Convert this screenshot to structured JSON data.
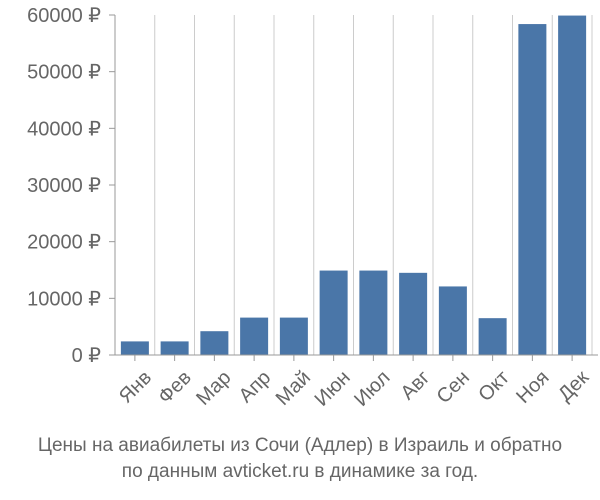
{
  "chart_data": {
    "type": "bar",
    "categories": [
      "Янв",
      "Фев",
      "Мар",
      "Апр",
      "Май",
      "Июн",
      "Июл",
      "Авг",
      "Сен",
      "Окт",
      "Ноя",
      "Дек"
    ],
    "values": [
      2400,
      2400,
      4200,
      6600,
      6600,
      14900,
      14900,
      14500,
      12100,
      6500,
      58400,
      59900
    ],
    "ylim": [
      0,
      60000
    ],
    "yticks": [
      0,
      10000,
      20000,
      30000,
      40000,
      50000,
      60000
    ],
    "ytick_labels": [
      "0 ₽",
      "10000 ₽",
      "20000 ₽",
      "30000 ₽",
      "40000 ₽",
      "50000 ₽",
      "60000 ₽"
    ],
    "grid": "vertical",
    "bar_color": "#4a76a8",
    "grid_color": "#cccccc",
    "axis_color": "#999999",
    "text_color": "#666666",
    "caption_line1": "Цены на авиабилеты из Сочи (Адлер) в Израиль и обратно",
    "caption_line2": "по данным avticket.ru в динамике за год."
  }
}
